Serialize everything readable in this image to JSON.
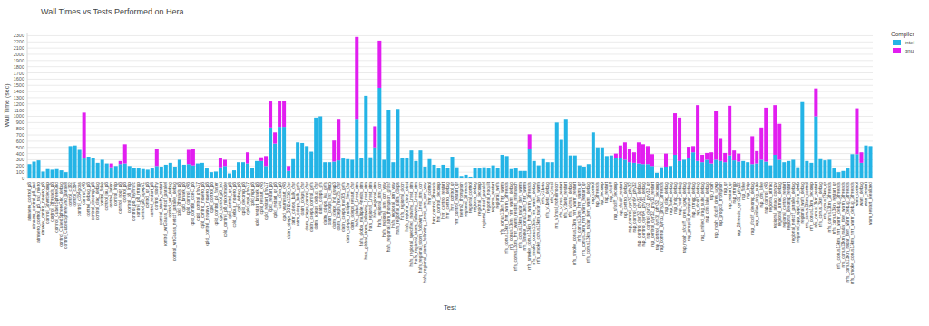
{
  "chart_data": {
    "type": "bar",
    "title": "Wall Times vs Tests Performed on Hera",
    "x_label": "Test",
    "y_label": "Wall Time (sec)",
    "legend_title": "Compiler",
    "legend": "top-right",
    "stacked": true,
    "grid": true,
    "ylim": [
      0,
      2350
    ],
    "yticks": [
      0,
      100,
      200,
      300,
      400,
      500,
      600,
      700,
      800,
      900,
      1000,
      1100,
      1200,
      1300,
      1400,
      1500,
      1600,
      1700,
      1800,
      1900,
      2000,
      2100,
      2200,
      2300
    ],
    "categories": [
      "atmaero_control_p8",
      "atmaero_control_p8_rad",
      "atmaero_control_p8_rad_micro",
      "atmwav_control_noaero_p8",
      "control_2dwrtdecomp",
      "control_2threads_p8",
      "control_CubedSphereGrid",
      "control_CubedSphereGrid_debug",
      "control_CubedSphereGrid_parallel",
      "control_c192",
      "control_c384",
      "control_c384gdas",
      "control_c48",
      "control_debug_p8",
      "control_decomp_p8",
      "control_diag_debug",
      "control_flake",
      "control_iau_p8",
      "control_latlon",
      "control_lndp",
      "control_noqr_p8",
      "control_p8",
      "control_p8_lndp",
      "control_p8_mynnsfc",
      "control_p8_rrtmgp",
      "control_p8_ugwpv1",
      "control_qr_p8",
      "control_restart_p8",
      "control_stochy",
      "control_stochy_restart",
      "control_wrtGauss_netcdf_parallel",
      "control_wrt_debug",
      "control_wrtGauss_netcdf_parallel_debug",
      "cpld_2threads_p8",
      "cpld_bmark_p8",
      "cpld_control_c48",
      "cpld_control_ciceC_p8",
      "cpld_control_gfsv17",
      "cpld_control_noaero_p8",
      "cpld_control_nowave_noaero_p8",
      "cpld_control_p8",
      "cpld_control_p8_faster",
      "cpld_control_p8_lnd",
      "cpld_control_p8_mixedmode",
      "cpld_control_qr_p8",
      "cpld_debug_noaero_p8",
      "cpld_debug_p8",
      "cpld_decomp_p8",
      "cpld_mpi_gfsv17",
      "cpld_mpi_p8",
      "cpld_restart_bmark_p8",
      "cpld_restart_c48",
      "cpld_restart_gfsv17",
      "cpld_restart_p8",
      "cpld_restart_qr_p8",
      "cpld_s2sa_p8",
      "cpld_warmstart_c48",
      "datm_cdeps_3072x1536_cfsr",
      "datm_cdeps_bulk_cfsr",
      "datm_cdeps_bulk_gefs",
      "datm_cdeps_cfsr",
      "datm_cdeps_control_cfsr",
      "datm_cdeps_control_gefs",
      "datm_cdeps_debug_cfsr",
      "datm_cdeps_gfs",
      "datm_cdeps_iau_gefs",
      "datm_cdeps_lnd_era5",
      "datm_cdeps_lnd_gswp3",
      "datm_cdeps_mx025_cfsr",
      "datm_cdeps_mx025_gefs",
      "datm_cdeps_multiple_files_cfsr",
      "datm_cdeps_restart_cfsr",
      "hafs_global_1nest_atm",
      "hafs_global_multiple_4nests_atm",
      "hafs_global_storm_following_1nest_atm",
      "hafs_regional_1nest_atm",
      "hafs_regional_atm",
      "hafs_regional_atm_ocn",
      "hafs_regional_atm_ocn_wav",
      "hafs_regional_atm_thompson_gfdlsf",
      "hafs_regional_atm_wav",
      "hafs_regional_datm_cdeps",
      "hafs_regional_docn",
      "hafs_regional_docn_oisst",
      "hafs_regional_specified_moving_1nest_atm",
      "hafs_regional_storm_following_1nest_atm",
      "hafs_regional_storm_following_1nest_atm_ocn",
      "hafs_regional_storm_following_1nest_atm_ocn_wav",
      "hrrr_control",
      "hrrr_control_2threads",
      "hrrr_control_decomp",
      "hrrr_control_restart",
      "hrrr_control_debug",
      "hrrr_control_qr",
      "hrrr_control_restart_qr",
      "merra2_thompson",
      "regional_2threads",
      "regional_control",
      "regional_debug",
      "regional_decomp",
      "regional_netcdf_parallel",
      "regional_noquilt",
      "regional_restart",
      "regional_wofs",
      "rrfs_conus13km_hrrr_warm",
      "rrfs_conus13km_hrrr_warm_2threads",
      "rrfs_conus13km_hrrr_warm_debug",
      "rrfs_conus13km_hrrr_warm_restart_mismatch",
      "rrfs_conus13km_radar_tten_warm",
      "rrfs_smoke_conus13km_hrrr_warm",
      "rrfs_smoke_conus13km_hrrr_warm_2threads",
      "rrfs_smoke_conus13km_hrrr_warm_debug",
      "rrfs_smoke_conus13km_radar_tten_warm",
      "rrfs_v1beta",
      "rrfs_v1beta_debug",
      "rrfs_v1nssl",
      "rrfs_v1nssl_nohailnoccn",
      "rrfs_v1nssl_restart",
      "rrfs_v1beta_restart",
      "rrfs_v1nssl_debug",
      "rrfs_smoke_conus13km_hrrr_warm_restart",
      "rrfs_conus13km_hrrr_warm_qr",
      "rrfs_conus13km_hrrr_warm_restart_qr",
      "rrfs_conus13km_radar_tten_warm_debug",
      "rap_control",
      "rap_2threads",
      "rap_decomp",
      "rap_restart",
      "rap_sfcdiff",
      "rap_sfcdiff_decomp",
      "rap_sfcdiff_restart",
      "rap_control_debug",
      "rap_control_dyn32_phy32",
      "rap_control_dyn64_phy32",
      "rap_control_dyn32_phy32_debug",
      "rap_control_dyn64_phy32_debug",
      "rap_control_dyn32_phy32_qr",
      "rap_control_dyn32_phy32_restart",
      "rap_control_dyn32_phy32_decomp",
      "rap_control_dyn32_phy32_2threads",
      "rap_diag_debug",
      "rap_flake_debug",
      "rap_lndp_debug",
      "rap_noah_debug",
      "rap_noah_sfcdiff_cires_ugwp_debug",
      "rap_progcld_thompson_debug",
      "rap_rrtmgp_debug",
      "rap_sfcdiff_debug",
      "rap_unified_drag_suite_debug",
      "rap_clm_lake_debug",
      "rap_noah",
      "rap_noah_sfcdiff_cires_ugwp",
      "rap_progcld_thompson",
      "rap_qr",
      "rap_restart_qr",
      "rap_rrtmgp",
      "rap_2threads_dyn32_phy32",
      "rap_flake",
      "rap_lndp",
      "rap_sfcdiff_decomp_debug",
      "rap_unified_drag_suite",
      "rap_clm_lake",
      "rap_control_c48",
      "regional_atmaq",
      "regional_atmaq_canopy",
      "regional_atmaq_debug",
      "regional_control_restart",
      "regional_decomp_restart",
      "regional_netcdf_parallel_debug",
      "regional_spp_sppt_shum_skeb",
      "regional_wofs_debug",
      "rrfs_conus13km_control",
      "rrfs_conus13km_decomp",
      "rrfs_conus13km_restart",
      "rrfs_conus13km_debug",
      "rrfs_conus13km_qr",
      "rrfs_conus13km_2threads",
      "rrfs_conus13km_restart_qr",
      "rrfs_conus13km_hrrr_warm_debug_2threads",
      "rrfs_conus13km_radar_tten_warm_2threads",
      "rrfs_conus13km_radar_tten_warm_debug_2threads",
      "rrfs_smoke_conus13km_hrrr_warm_debug_2threads",
      "wam_control",
      "wam_debug",
      "wam_restart",
      "wam_restart_idealized"
    ],
    "series": [
      {
        "name": "intel",
        "color": "#24b4e6",
        "values": [
          230,
          270,
          290,
          110,
          150,
          140,
          150,
          130,
          100,
          520,
          530,
          460,
          320,
          350,
          330,
          250,
          300,
          240,
          180,
          200,
          230,
          240,
          200,
          170,
          160,
          150,
          140,
          160,
          200,
          190,
          220,
          250,
          190,
          300,
          220,
          230,
          210,
          240,
          250,
          160,
          100,
          110,
          180,
          200,
          80,
          130,
          260,
          260,
          240,
          170,
          280,
          280,
          200,
          820,
          560,
          830,
          830,
          120,
          310,
          580,
          570,
          520,
          430,
          980,
          1000,
          260,
          260,
          270,
          290,
          320,
          310,
          300,
          960,
          330,
          1330,
          340,
          500,
          1460,
          300,
          1100,
          260,
          1120,
          330,
          330,
          450,
          280,
          450,
          190,
          310,
          220,
          160,
          220,
          170,
          350,
          180,
          40,
          60,
          30,
          170,
          160,
          180,
          160,
          210,
          170,
          380,
          360,
          150,
          160,
          120,
          120,
          470,
          280,
          210,
          310,
          260,
          260,
          900,
          620,
          960,
          370,
          370,
          210,
          190,
          230,
          740,
          500,
          500,
          360,
          370,
          330,
          330,
          300,
          260,
          250,
          240,
          230,
          230,
          200,
          90,
          180,
          190,
          200,
          380,
          280,
          300,
          330,
          420,
          280,
          260,
          300,
          240,
          300,
          280,
          260,
          370,
          290,
          270,
          280,
          260,
          230,
          240,
          300,
          270,
          210,
          380,
          300,
          260,
          280,
          300,
          180,
          1230,
          280,
          250,
          1000,
          310,
          290,
          300,
          160,
          100,
          120,
          160,
          390,
          390,
          250,
          530,
          520
        ]
      },
      {
        "name": "gnu",
        "color": "#e21ef0",
        "values": [
          null,
          null,
          null,
          null,
          null,
          null,
          null,
          null,
          null,
          null,
          null,
          null,
          740,
          null,
          null,
          null,
          null,
          null,
          60,
          null,
          50,
          310,
          null,
          null,
          null,
          null,
          null,
          null,
          280,
          null,
          null,
          null,
          null,
          null,
          null,
          230,
          260,
          null,
          null,
          null,
          null,
          null,
          150,
          100,
          null,
          null,
          null,
          null,
          180,
          null,
          null,
          60,
          160,
          420,
          180,
          420,
          420,
          80,
          null,
          null,
          null,
          null,
          null,
          null,
          null,
          null,
          null,
          340,
          670,
          null,
          null,
          null,
          1320,
          null,
          null,
          null,
          340,
          760,
          null,
          null,
          null,
          null,
          null,
          null,
          null,
          null,
          null,
          null,
          null,
          null,
          null,
          null,
          null,
          null,
          null,
          null,
          null,
          null,
          null,
          null,
          null,
          null,
          null,
          null,
          null,
          null,
          null,
          null,
          null,
          null,
          240,
          null,
          null,
          null,
          null,
          null,
          null,
          null,
          null,
          null,
          null,
          null,
          null,
          null,
          null,
          null,
          null,
          null,
          null,
          70,
          200,
          280,
          220,
          170,
          340,
          320,
          290,
          190,
          null,
          null,
          210,
          null,
          670,
          700,
          null,
          180,
          100,
          900,
          120,
          110,
          180,
          780,
          370,
          150,
          800,
          160,
          130,
          null,
          null,
          450,
          200,
          520,
          870,
          null,
          800,
          580,
          null,
          null,
          null,
          null,
          null,
          null,
          null,
          450,
          null,
          null,
          null,
          null,
          null,
          null,
          null,
          null,
          740,
          170,
          null,
          null
        ]
      }
    ]
  }
}
